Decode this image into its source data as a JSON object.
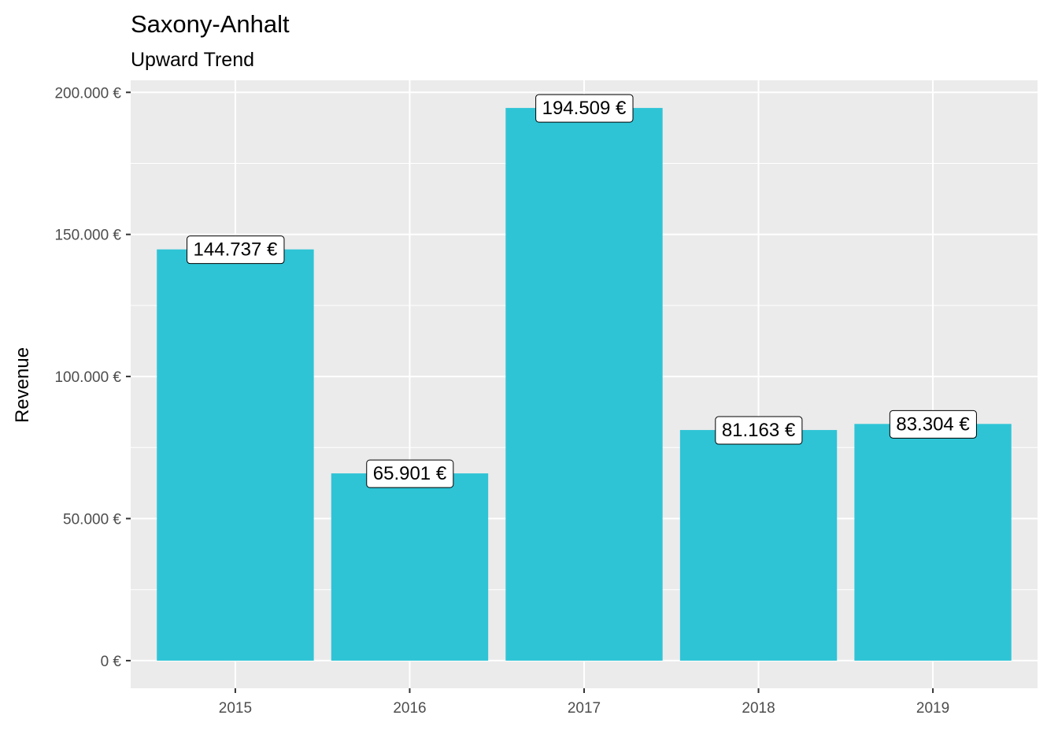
{
  "chart_data": {
    "type": "bar",
    "title": "Saxony-Anhalt",
    "subtitle": "Upward Trend",
    "xlabel": "",
    "ylabel": "Revenue",
    "categories": [
      "2015",
      "2016",
      "2017",
      "2018",
      "2019"
    ],
    "values": [
      144737,
      65901,
      194509,
      81163,
      83304
    ],
    "data_labels": [
      "144.737 €",
      "65.901 €",
      "194.509 €",
      "81.163 €",
      "83.304 €"
    ],
    "y_ticks": [
      0,
      50000,
      100000,
      150000,
      200000
    ],
    "y_tick_labels": [
      "0 €",
      "50.000 €",
      "100.000 €",
      "150.000 €",
      "200.000 €"
    ],
    "ylim": [
      -9725,
      204234
    ],
    "grid": true,
    "legend": "none",
    "colors": {
      "bar": "#2EC4D6",
      "panel": "#EBEBEB",
      "grid": "#FFFFFF"
    }
  }
}
